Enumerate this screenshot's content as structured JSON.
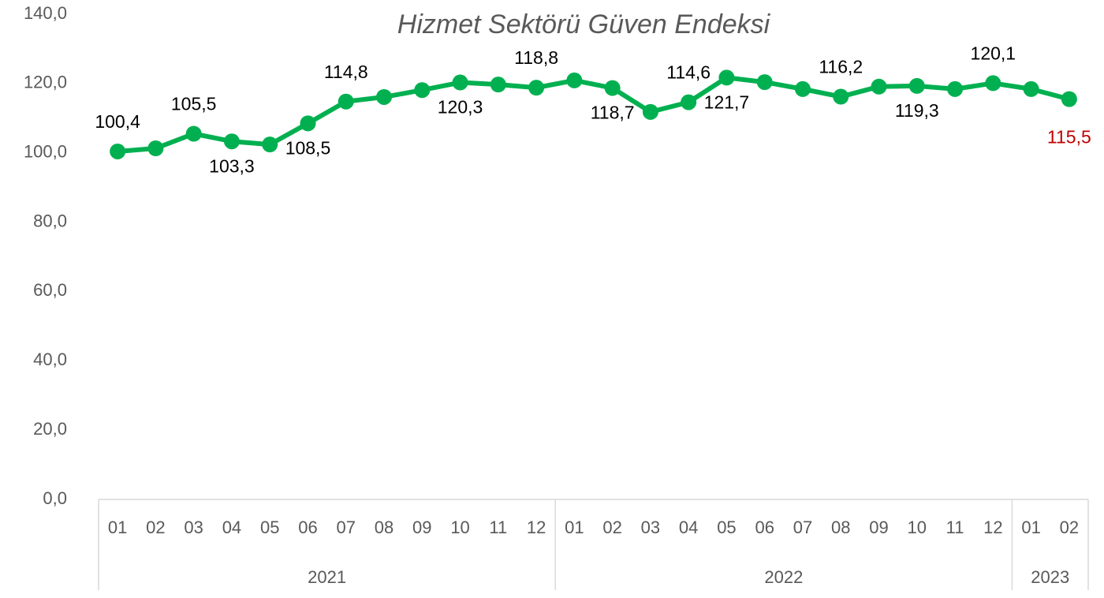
{
  "chart_data": {
    "type": "line",
    "title": "Hizmet Sektörü Güven Endeksi",
    "groups": [
      {
        "name": "2021",
        "categories": [
          "01",
          "02",
          "03",
          "04",
          "05",
          "06",
          "07",
          "08",
          "09",
          "10",
          "11",
          "12"
        ]
      },
      {
        "name": "2022",
        "categories": [
          "01",
          "02",
          "03",
          "04",
          "05",
          "06",
          "07",
          "08",
          "09",
          "10",
          "11",
          "12"
        ]
      },
      {
        "name": "2023",
        "categories": [
          "01",
          "02"
        ]
      }
    ],
    "series": [
      {
        "name": "Hizmet Sektörü Güven Endeksi",
        "color": "#00b050",
        "values": [
          100.4,
          101.3,
          105.5,
          103.3,
          102.4,
          108.5,
          114.8,
          116.1,
          118.1,
          120.3,
          119.7,
          118.8,
          120.9,
          118.7,
          111.8,
          114.6,
          121.7,
          120.4,
          118.4,
          116.2,
          119.1,
          119.3,
          118.4,
          120.1,
          118.4,
          115.5
        ],
        "value_labels": [
          "100,4",
          null,
          "105,5",
          "103,3",
          null,
          "108,5",
          "114,8",
          null,
          null,
          "120,3",
          null,
          "118,8",
          null,
          "118,7",
          null,
          "114,6",
          "121,7",
          null,
          null,
          "116,2",
          null,
          "119,3",
          null,
          "120,1",
          null,
          "115,5"
        ]
      }
    ],
    "latest_label_color": "#c00000",
    "ylim": [
      0,
      140
    ],
    "yticks": [
      {
        "value": 0,
        "label": "0,0"
      },
      {
        "value": 20,
        "label": "20,0"
      },
      {
        "value": 40,
        "label": "40,0"
      },
      {
        "value": 60,
        "label": "60,0"
      },
      {
        "value": 80,
        "label": "80,0"
      },
      {
        "value": 100,
        "label": "100,0"
      },
      {
        "value": 120,
        "label": "120,0"
      },
      {
        "value": 140,
        "label": "140,0"
      }
    ],
    "grid": false
  }
}
